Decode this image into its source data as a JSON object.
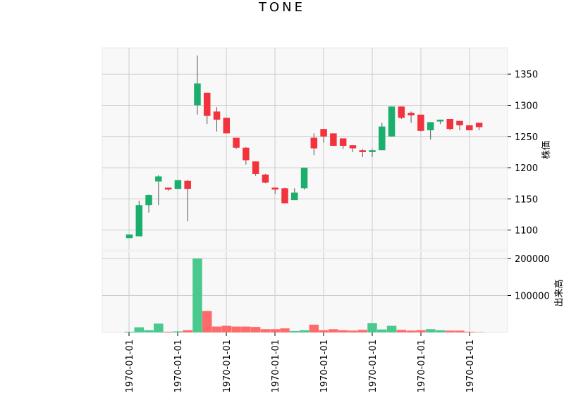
{
  "title": "TONE",
  "colors": {
    "up": "#1aaf6c",
    "down": "#f2323c",
    "up_volume": "#4ac98e",
    "down_volume": "#ff6b6b",
    "grid": "#cccccc",
    "panel_bg": "#f8f8f8",
    "wick": "#555555"
  },
  "chart_data": [
    {
      "type": "candlestick",
      "ylabel": "株価",
      "ylim": [
        1068,
        1392
      ],
      "yticks": [
        1100,
        1150,
        1200,
        1250,
        1300,
        1350
      ],
      "xticks": [
        "1970-01-01",
        "1970-01-01",
        "1970-01-01",
        "1970-01-01",
        "1970-01-01",
        "1970-01-01",
        "1970-01-01",
        "1970-01-01"
      ],
      "grid": true,
      "ohlc": [
        {
          "open": 1087,
          "high": 1093,
          "low": 1087,
          "close": 1093
        },
        {
          "open": 1090,
          "high": 1147,
          "low": 1090,
          "close": 1140
        },
        {
          "open": 1140,
          "high": 1157,
          "low": 1128,
          "close": 1156
        },
        {
          "open": 1178,
          "high": 1188,
          "low": 1140,
          "close": 1186
        },
        {
          "open": 1168,
          "high": 1168,
          "low": 1163,
          "close": 1165
        },
        {
          "open": 1166,
          "high": 1180,
          "low": 1166,
          "close": 1180
        },
        {
          "open": 1179,
          "high": 1180,
          "low": 1114,
          "close": 1166
        },
        {
          "open": 1300,
          "high": 1380,
          "low": 1285,
          "close": 1335
        },
        {
          "open": 1320,
          "high": 1320,
          "low": 1270,
          "close": 1283
        },
        {
          "open": 1290,
          "high": 1297,
          "low": 1258,
          "close": 1277
        },
        {
          "open": 1280,
          "high": 1280,
          "low": 1255,
          "close": 1255
        },
        {
          "open": 1248,
          "high": 1248,
          "low": 1230,
          "close": 1232
        },
        {
          "open": 1232,
          "high": 1233,
          "low": 1205,
          "close": 1212
        },
        {
          "open": 1210,
          "high": 1210,
          "low": 1187,
          "close": 1190
        },
        {
          "open": 1189,
          "high": 1190,
          "low": 1175,
          "close": 1176
        },
        {
          "open": 1168,
          "high": 1168,
          "low": 1158,
          "close": 1165
        },
        {
          "open": 1167,
          "high": 1168,
          "low": 1143,
          "close": 1143
        },
        {
          "open": 1148,
          "high": 1167,
          "low": 1148,
          "close": 1160
        },
        {
          "open": 1167,
          "high": 1200,
          "low": 1165,
          "close": 1200
        },
        {
          "open": 1248,
          "high": 1255,
          "low": 1220,
          "close": 1231
        },
        {
          "open": 1262,
          "high": 1262,
          "low": 1240,
          "close": 1250
        },
        {
          "open": 1255,
          "high": 1255,
          "low": 1235,
          "close": 1235
        },
        {
          "open": 1247,
          "high": 1247,
          "low": 1230,
          "close": 1235
        },
        {
          "open": 1236,
          "high": 1236,
          "low": 1225,
          "close": 1231
        },
        {
          "open": 1228,
          "high": 1230,
          "low": 1217,
          "close": 1225
        },
        {
          "open": 1225,
          "high": 1230,
          "low": 1217,
          "close": 1228
        },
        {
          "open": 1228,
          "high": 1272,
          "low": 1228,
          "close": 1266
        },
        {
          "open": 1250,
          "high": 1298,
          "low": 1250,
          "close": 1298
        },
        {
          "open": 1298,
          "high": 1298,
          "low": 1278,
          "close": 1280
        },
        {
          "open": 1288,
          "high": 1290,
          "low": 1272,
          "close": 1284
        },
        {
          "open": 1285,
          "high": 1285,
          "low": 1258,
          "close": 1259
        },
        {
          "open": 1260,
          "high": 1273,
          "low": 1245,
          "close": 1273
        },
        {
          "open": 1274,
          "high": 1277,
          "low": 1270,
          "close": 1277
        },
        {
          "open": 1278,
          "high": 1278,
          "low": 1260,
          "close": 1262
        },
        {
          "open": 1275,
          "high": 1275,
          "low": 1260,
          "close": 1268
        },
        {
          "open": 1268,
          "high": 1268,
          "low": 1260,
          "close": 1260
        },
        {
          "open": 1272,
          "high": 1272,
          "low": 1260,
          "close": 1265
        }
      ]
    },
    {
      "type": "bar",
      "ylabel": "出来高",
      "ylim": [
        0,
        200000
      ],
      "yticks": [
        100000,
        200000
      ],
      "grid": true,
      "volume": [
        2000,
        14000,
        6000,
        24000,
        2000,
        3000,
        6000,
        200000,
        58000,
        16000,
        18000,
        16000,
        16000,
        15000,
        9000,
        9000,
        11000,
        4000,
        6000,
        21000,
        6000,
        9000,
        6000,
        5000,
        7000,
        25000,
        8000,
        18000,
        7000,
        5000,
        6000,
        9000,
        6000,
        5000,
        5000,
        2000,
        1000
      ]
    }
  ]
}
